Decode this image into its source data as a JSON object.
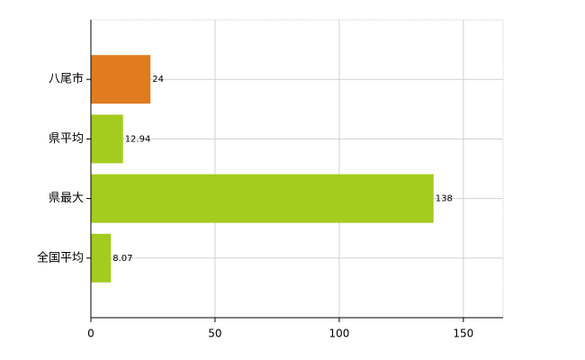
{
  "chart_data": {
    "type": "hbar",
    "categories": [
      "八尾市",
      "県平均",
      "県最大",
      "全国平均"
    ],
    "values": [
      24,
      12.94,
      138,
      8.07
    ],
    "colors": [
      "#e07b20",
      "#a3cc1e",
      "#a3cc1e",
      "#a3cc1e"
    ],
    "xlim": [
      0,
      166
    ],
    "xticks": [
      0,
      50,
      100,
      150
    ],
    "grid": true
  }
}
